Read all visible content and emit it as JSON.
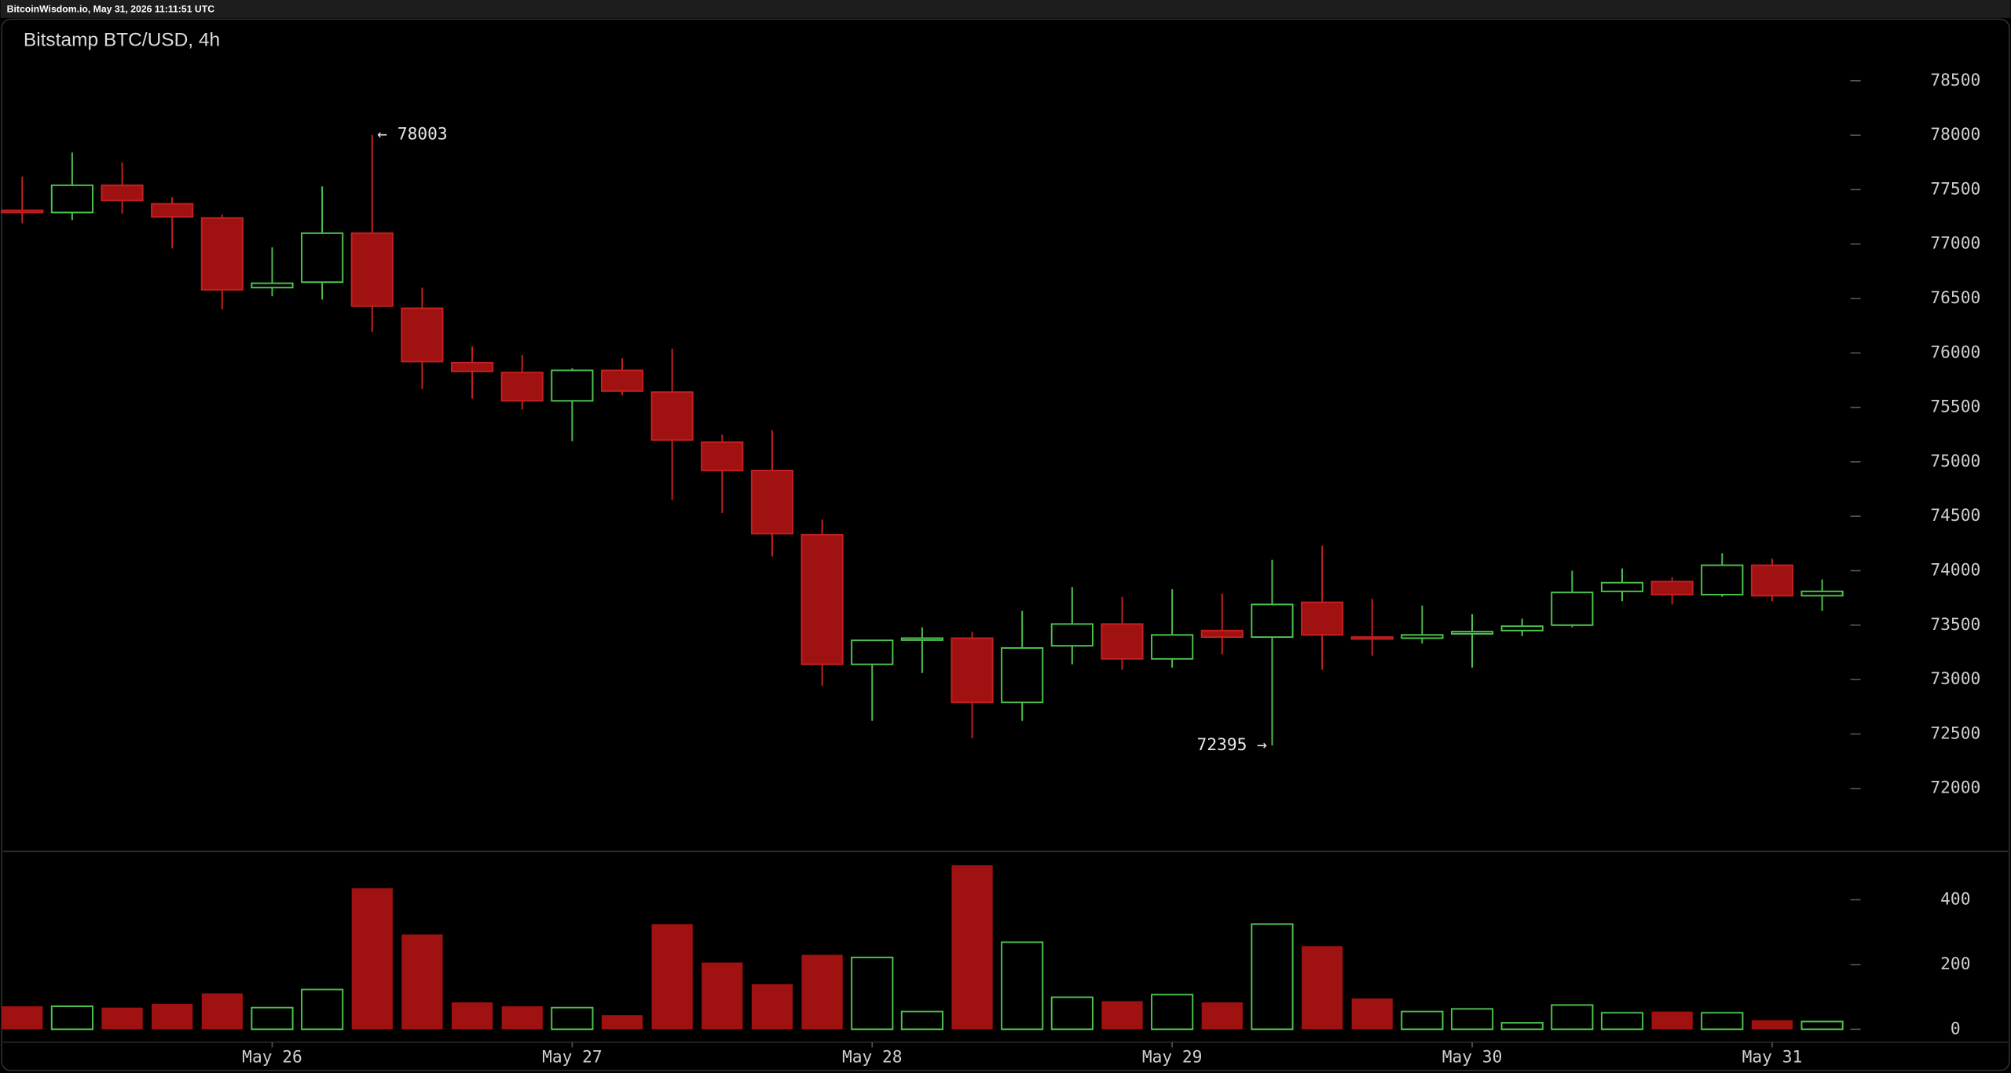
{
  "header": {
    "text": "BitcoinWisdom.io, May 31, 2026 11:11:51 UTC"
  },
  "chart_data": [
    {
      "type": "candlestick",
      "title": "Bitstamp BTC/USD, 4h",
      "open": [
        77310,
        77290,
        77540,
        77370,
        77240,
        76600,
        76650,
        77100,
        76410,
        75910,
        75820,
        75560,
        75840,
        75640,
        75180,
        74920,
        74330,
        73140,
        73370,
        73380,
        72790,
        73310,
        73510,
        73190,
        73450,
        73390,
        73710,
        73390,
        73380,
        73420,
        73450,
        73500,
        73810,
        73900,
        73780,
        74050,
        73770
      ],
      "high": [
        77620,
        77840,
        77750,
        77430,
        77270,
        76970,
        77530,
        78003,
        76600,
        76060,
        75980,
        75860,
        75950,
        76040,
        75250,
        75290,
        74470,
        73360,
        73480,
        73440,
        73630,
        73850,
        73760,
        73830,
        73790,
        74100,
        74230,
        73740,
        73680,
        73600,
        73560,
        74000,
        74020,
        73940,
        74160,
        74110,
        73920
      ],
      "low": [
        77190,
        77220,
        77280,
        76960,
        76400,
        76520,
        76490,
        76190,
        75670,
        75580,
        75480,
        75190,
        75610,
        74650,
        74530,
        74130,
        72940,
        72620,
        73060,
        72460,
        72620,
        73140,
        73090,
        73110,
        73230,
        72395,
        73090,
        73220,
        73330,
        73110,
        73400,
        73480,
        73720,
        73690,
        73760,
        73720,
        73630
      ],
      "close": [
        77290,
        77540,
        77400,
        77250,
        76580,
        76640,
        77100,
        76430,
        75920,
        75830,
        75560,
        75840,
        75650,
        75200,
        74920,
        74340,
        73140,
        73360,
        73380,
        72790,
        73290,
        73510,
        73190,
        73410,
        73390,
        73690,
        73410,
        73380,
        73410,
        73440,
        73490,
        73800,
        73890,
        73780,
        74050,
        73770,
        73810
      ],
      "up_color": "#4ec24e",
      "down_color": "#a01212",
      "ylim": [
        71435,
        79065
      ],
      "yticks": [
        72000,
        72500,
        73000,
        73500,
        74000,
        74500,
        75000,
        75500,
        76000,
        76500,
        77000,
        77500,
        78000,
        78500
      ],
      "annotations": [
        {
          "text": "← 78003",
          "value": 78003
        },
        {
          "text": "72395 →",
          "value": 72395
        }
      ]
    },
    {
      "type": "bar",
      "categories": [
        null,
        null,
        null,
        null,
        null,
        "May 26",
        null,
        null,
        null,
        null,
        null,
        "May 27",
        null,
        null,
        null,
        null,
        null,
        "May 28",
        null,
        null,
        null,
        null,
        null,
        "May 29",
        null,
        null,
        null,
        null,
        null,
        "May 30",
        null,
        null,
        null,
        null,
        null,
        "May 31",
        null
      ],
      "values": [
        71,
        71,
        67,
        79,
        111,
        67,
        123,
        436,
        293,
        83,
        71,
        67,
        44,
        325,
        206,
        139,
        230,
        222,
        55,
        507,
        269,
        99,
        87,
        107,
        83,
        325,
        257,
        95,
        55,
        63,
        20,
        75,
        51,
        55,
        51,
        28,
        24
      ],
      "ylim": [
        -40,
        550
      ],
      "yticks": [
        0,
        200,
        400
      ]
    }
  ]
}
